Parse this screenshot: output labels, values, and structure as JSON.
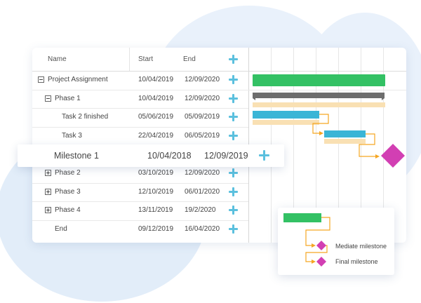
{
  "columns": {
    "name": "Name",
    "start": "Start",
    "end": "End"
  },
  "rows": [
    {
      "name": "Project Assignment",
      "start": "10/04/2019",
      "end": "12/09/2020",
      "toggle": "collapse"
    },
    {
      "name": "Phase 1",
      "start": "10/04/2019",
      "end": "12/09/2020",
      "toggle": "collapse"
    },
    {
      "name": "Task 2 finished",
      "start": "05/06/2019",
      "end": "05/09/2019",
      "toggle": "none"
    },
    {
      "name": "Task 3",
      "start": "22/04/2019",
      "end": "06/05/2019",
      "toggle": "none"
    },
    {
      "name": "",
      "start": "",
      "end": "",
      "toggle": "none"
    },
    {
      "name": "Phase 2",
      "start": "03/10/2019",
      "end": "12/09/2020",
      "toggle": "expand"
    },
    {
      "name": "Phase 3",
      "start": "12/10/2019",
      "end": "06/01/2020",
      "toggle": "expand"
    },
    {
      "name": "Phase 4",
      "start": "13/11/2019",
      "end": "19/2/2020",
      "toggle": "expand"
    },
    {
      "name": "End",
      "start": "09/12/2019",
      "end": "16/04/2020",
      "toggle": "none"
    }
  ],
  "milestone_popup": {
    "name": "Milestone 1",
    "start": "10/04/2018",
    "end": "12/09/2019"
  },
  "legend": {
    "mediate": "Mediate milestone",
    "final": "Final milestone"
  },
  "colors": {
    "summary_bar": "#33c164",
    "phase_bar": "#6d6d6d",
    "task_bar": "#3ab5d6",
    "baseline_bar": "#f9e0b3",
    "milestone": "#d23fb3",
    "connector": "#f5a623",
    "add_icon": "#5bc0de"
  }
}
